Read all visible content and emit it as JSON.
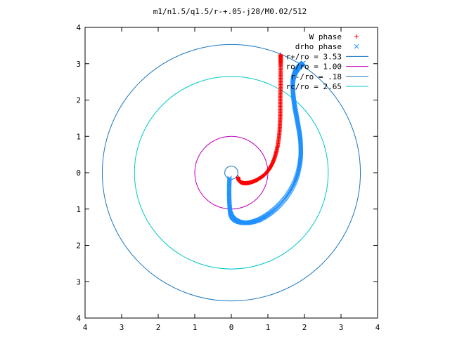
{
  "chart_data": {
    "type": "scatter",
    "title": "m1/n1.5/q1.5/r-+.05-j28/M0.02/512",
    "xlabel": "",
    "ylabel": "",
    "xlim": [
      -4,
      4
    ],
    "ylim": [
      -4,
      4
    ],
    "x_tick_values": [
      -4,
      -3,
      -2,
      -1,
      0,
      1,
      2,
      3,
      4
    ],
    "x_tick_labels": [
      "4",
      "3",
      "2",
      "1",
      "0",
      "1",
      "2",
      "3",
      "4"
    ],
    "y_tick_values": [
      4,
      3,
      2,
      1,
      0,
      -1,
      -2,
      -3,
      -4
    ],
    "y_tick_labels": [
      "4",
      "3",
      "2",
      "1",
      "0",
      "1",
      "2",
      "3",
      "4"
    ],
    "grid": false,
    "legend_position": "top-right",
    "series": [
      {
        "name": "W phase",
        "kind": "points",
        "marker": "+",
        "color": "#ff0000",
        "x": [
          0.18,
          0.2,
          0.24,
          0.3,
          0.38,
          0.48,
          0.58,
          0.68,
          0.78,
          0.88,
          0.97,
          1.05,
          1.12,
          1.18,
          1.23,
          1.27,
          1.3,
          1.32,
          1.33,
          1.34,
          1.34,
          1.34,
          1.34,
          1.35,
          1.35,
          1.35,
          1.35,
          1.35,
          1.35,
          1.35
        ],
        "y": [
          -0.12,
          -0.2,
          -0.25,
          -0.28,
          -0.29,
          -0.28,
          -0.25,
          -0.21,
          -0.15,
          -0.08,
          0.01,
          0.12,
          0.25,
          0.4,
          0.57,
          0.75,
          0.95,
          1.15,
          1.35,
          1.55,
          1.75,
          1.95,
          2.15,
          2.35,
          2.55,
          2.75,
          2.95,
          3.1,
          3.2,
          3.25
        ]
      },
      {
        "name": "drho phase",
        "kind": "points",
        "marker": "x",
        "color": "#1e90ff",
        "x": [
          -0.05,
          -0.06,
          -0.06,
          -0.05,
          -0.03,
          0.02,
          0.1,
          0.2,
          0.32,
          0.45,
          0.6,
          0.75,
          0.9,
          1.05,
          1.2,
          1.35,
          1.5,
          1.63,
          1.74,
          1.82,
          1.87,
          1.9,
          1.9,
          1.89,
          1.86,
          1.82,
          1.78,
          1.74,
          1.71,
          1.69,
          1.68,
          1.68,
          1.7,
          1.73,
          1.77,
          1.82,
          1.87,
          1.92,
          1.97
        ],
        "y": [
          -0.15,
          -0.4,
          -0.65,
          -0.9,
          -1.1,
          -1.22,
          -1.3,
          -1.35,
          -1.38,
          -1.38,
          -1.35,
          -1.3,
          -1.22,
          -1.12,
          -1.0,
          -0.85,
          -0.67,
          -0.47,
          -0.25,
          -0.02,
          0.22,
          0.45,
          0.68,
          0.9,
          1.12,
          1.35,
          1.57,
          1.78,
          1.98,
          2.17,
          2.35,
          2.5,
          2.62,
          2.72,
          2.8,
          2.87,
          2.93,
          2.98,
          3.02
        ]
      },
      {
        "name": "r+/ro = 3.53",
        "kind": "circle",
        "radius": 3.53,
        "color": "#1a75bf"
      },
      {
        "name": "ro/ro = 1.00",
        "kind": "circle",
        "radius": 1.0,
        "color": "#c000c0"
      },
      {
        "name": "r-/ro = .18",
        "kind": "circle",
        "radius": 0.18,
        "color": "#1a75bf"
      },
      {
        "name": "rc/ro = 2.65",
        "kind": "circle",
        "radius": 2.65,
        "color": "#00c8c8"
      }
    ]
  }
}
